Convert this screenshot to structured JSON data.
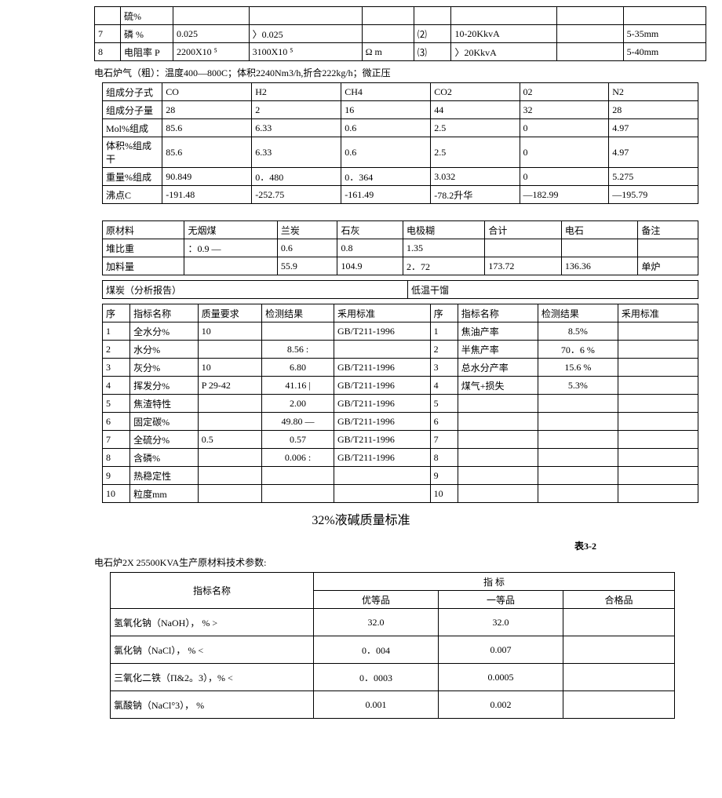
{
  "topTable": {
    "rows": [
      {
        "n": "",
        "name": "硫%",
        "v1": "",
        "v2": "",
        "unit": "",
        "k": "",
        "range": "",
        "sz": ""
      },
      {
        "n": "7",
        "name": "磷 %",
        "v1": "0.025",
        "v2": "〉0.025",
        "unit": "",
        "k": "⑵",
        "range": "10-20KkvA",
        "sz": "5-35mm"
      },
      {
        "n": "8",
        "name": "电阻率 P",
        "v1": "2200X10 ⁵",
        "v2": "3100X10 ⁵",
        "unit": "Ω m",
        "k": "⑶",
        "range": "〉20KkvA",
        "sz": "5-40mm"
      }
    ]
  },
  "gasCaption": "电石炉气（粗）：温度400—800C；体积2240Nm3/h,折合222kg/h；微正压",
  "gasTable": {
    "rows": [
      [
        "组成分子式",
        "CO",
        "H2",
        "CH4",
        "CO2",
        "02",
        "N2"
      ],
      [
        "组成分子量",
        "28",
        "2",
        "16",
        "44",
        "32",
        "28"
      ],
      [
        "Mol%组成",
        "85.6",
        "6.33",
        "0.6",
        "2.5",
        "0",
        "4.97"
      ],
      [
        "体积%组成干",
        "85.6",
        "6.33",
        "0.6",
        "2.5",
        "0",
        "4.97"
      ],
      [
        "重量%组成",
        "90.849",
        "0．480",
        "0．364",
        "3.032",
        "0",
        "5.275"
      ],
      [
        "沸点C",
        "-191.48",
        "-252.75",
        "-161.49",
        "-78.2升华",
        "—182.99",
        "—195.79"
      ]
    ]
  },
  "matTable": {
    "rows": [
      [
        "原材料",
        "无烟煤",
        "兰炭",
        "石灰",
        "电极糊",
        "合计",
        "电石",
        "备注"
      ],
      [
        "堆比重",
        "：0.9 —",
        "0.6",
        "0.8",
        "1.35",
        "",
        "",
        ""
      ],
      [
        "加料量",
        "",
        "55.9",
        "104.9",
        "2．72",
        "173.72",
        "136.36",
        "单炉"
      ]
    ]
  },
  "coalHeader": {
    "left": "煤炭（分析报告）",
    "right": "低温干馏"
  },
  "coalCols": [
    "序",
    "指标名称",
    "质量要求",
    "检测结果",
    "釆用标准",
    "序",
    "指标名称",
    "检测结果",
    "釆用标准"
  ],
  "coalRows": [
    [
      "1",
      "全水分%",
      "10",
      "",
      "GB/T211-1996",
      "1",
      "焦油产率",
      "8.5%",
      ""
    ],
    [
      "2",
      "水分%",
      "",
      "8.56     :",
      "",
      "2",
      "半焦产率",
      "70．6 %",
      ""
    ],
    [
      "3",
      "灰分%",
      "10",
      "6.80",
      "GB/T211-1996",
      "3",
      "总水分产率",
      "15.6 %",
      ""
    ],
    [
      "4",
      "挥发分%",
      "P 29-42",
      "41.16      |",
      "GB/T211-1996",
      "4",
      "煤气+损失",
      "5.3%",
      ""
    ],
    [
      "5",
      "焦渣特性",
      "",
      "2.00",
      "GB/T211-1996",
      "5",
      "",
      "",
      ""
    ],
    [
      "6",
      "固定碳%",
      "",
      "49.80 —",
      "GB/T211-1996",
      "6",
      "",
      "",
      ""
    ],
    [
      "7",
      "全硫分%",
      "0.5",
      "0.57",
      "GB/T211-1996",
      "7",
      "",
      "",
      ""
    ],
    [
      "8",
      "含磷%",
      "",
      "0.006 :",
      "GB/T211-1996",
      "8",
      "",
      "",
      ""
    ],
    [
      "9",
      "热稳定性",
      "",
      "",
      "",
      "9",
      "",
      "",
      ""
    ],
    [
      "10",
      "粒度mm",
      "",
      "",
      "",
      "10",
      "",
      "",
      ""
    ]
  ],
  "midTitle": "32%液碱质量标准",
  "tblNo": "表3-2",
  "prodCaption": "电石炉2X 25500KVA生产原材料技术参数:",
  "specTable": {
    "head": {
      "name": "指标名称",
      "spec": "指            标",
      "g1": "优等品",
      "g2": "一等品",
      "g3": "合格品"
    },
    "rows": [
      [
        "氢氧化钠（NaOH），   %                     >",
        "32.0",
        "32.0",
        ""
      ],
      [
        "氯化钠（NaCl），   %                          <",
        "0．004",
        "0.007",
        ""
      ],
      [
        "三氧化二铁（Π&2。3），%                    <",
        "0．0003",
        "0.0005",
        ""
      ],
      [
        "氯酸钠（NaCl°3），   %",
        "0.001",
        "0.002",
        ""
      ]
    ]
  }
}
